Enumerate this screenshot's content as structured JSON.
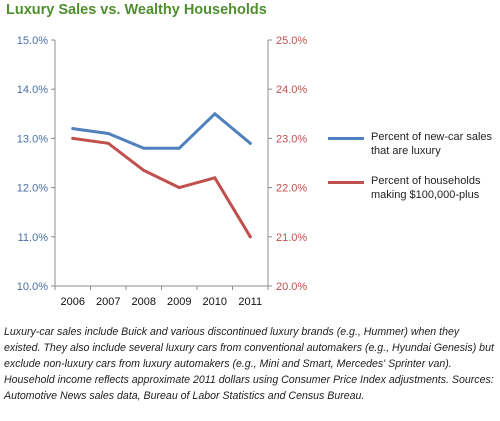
{
  "title": "Luxury Sales vs. Wealthy Households",
  "note": "Luxury-car sales include Buick and various discontinued luxury brands (e.g., Hummer) when they existed. They also include several luxury cars from conventional automakers (e.g., Hyundai Genesis) but exclude non-luxury cars from luxury automakers (e.g., Mini and Smart, Mercedes' Sprinter van). Household income reflects approximate 2011 dollars using Consumer Price Index adjustments. Sources: Automotive News sales data, Bureau of Labor Statistics and Census Bureau.",
  "chart_data": {
    "type": "line",
    "title": "Luxury Sales vs. Wealthy Households",
    "categories": [
      "2006",
      "2007",
      "2008",
      "2009",
      "2010",
      "2011"
    ],
    "left_axis": {
      "ylim": [
        10.0,
        15.0
      ],
      "ticks": [
        "10.0%",
        "11.0%",
        "12.0%",
        "13.0%",
        "14.0%",
        "15.0%"
      ],
      "tick_values": [
        10,
        11,
        12,
        13,
        14,
        15
      ],
      "color": "#4a6fa5"
    },
    "right_axis": {
      "ylim": [
        20.0,
        25.0
      ],
      "ticks": [
        "20.0%",
        "21.0%",
        "22.0%",
        "23.0%",
        "24.0%",
        "25.0%"
      ],
      "tick_values": [
        20,
        21,
        22,
        23,
        24,
        25
      ],
      "color": "#c0504d"
    },
    "grid": false,
    "legend_position": "right",
    "series": [
      {
        "name": "Percent of new-car sales that are luxury",
        "axis": "left",
        "color": "#4f81bd",
        "values": [
          13.2,
          13.1,
          12.8,
          12.8,
          13.5,
          12.9
        ]
      },
      {
        "name": "Percent of households making $100,000-plus",
        "axis": "right",
        "color": "#c0504d",
        "values": [
          23.0,
          22.9,
          22.35,
          22.0,
          22.2,
          21.0
        ]
      }
    ]
  }
}
